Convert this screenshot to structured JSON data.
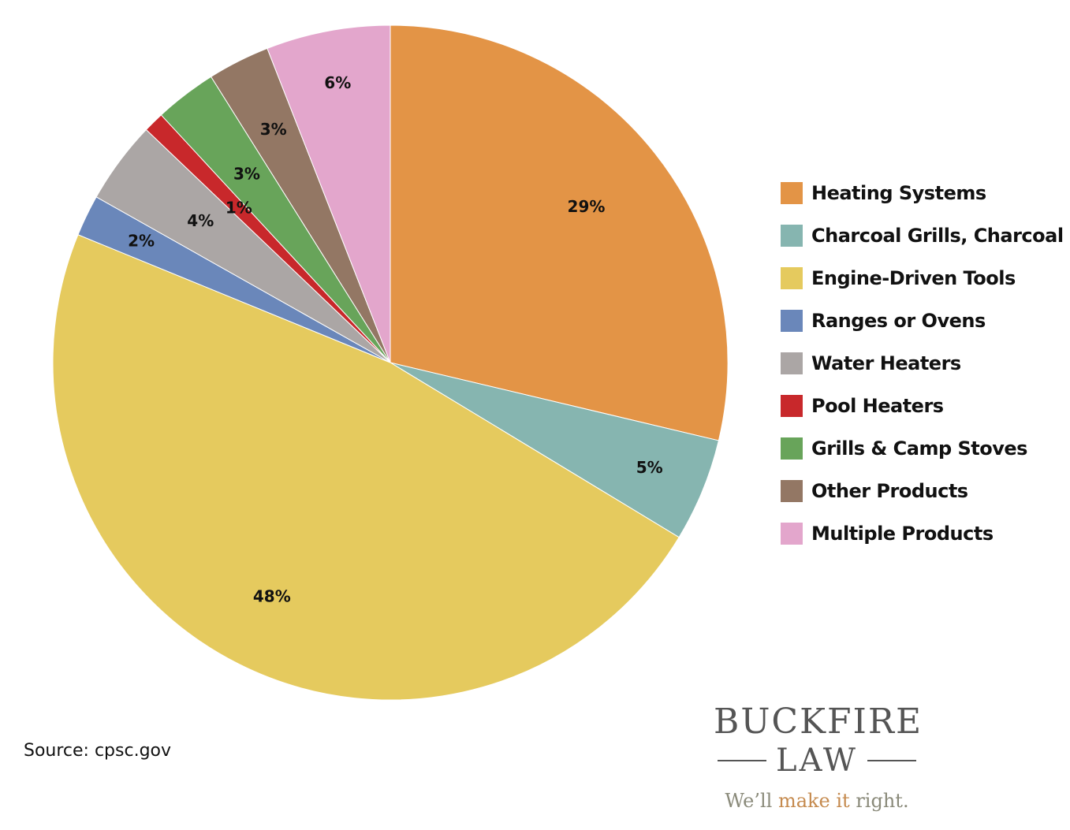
{
  "chart_data": {
    "type": "pie",
    "title": "",
    "categories": [
      "Heating Systems",
      "Charcoal Grills, Charcoal",
      "Engine-Driven Tools",
      "Ranges or Ovens",
      "Water Heaters",
      "Pool Heaters",
      "Grills & Camp Stoves",
      "Other Products",
      "Multiple Products"
    ],
    "values": [
      29,
      5,
      48,
      2,
      4,
      1,
      3,
      3,
      6
    ],
    "value_labels": [
      "29%",
      "5%",
      "48%",
      "2%",
      "4%",
      "1%",
      "3%",
      "3%",
      "6%"
    ],
    "colors": [
      "#E39446",
      "#86B5B0",
      "#E5CA5E",
      "#6A87BA",
      "#ABA6A5",
      "#C8282B",
      "#68A45A",
      "#937764",
      "#E3A6CC"
    ],
    "start_angle_deg": 0,
    "direction": "clockwise",
    "legend_position": "right"
  },
  "source": "Source: cpsc.gov",
  "logo": {
    "name": "BUCKFIRE",
    "sub": "LAW",
    "tagline_pre": "We’ll ",
    "tagline_accent": "make it",
    "tagline_post": " right."
  }
}
